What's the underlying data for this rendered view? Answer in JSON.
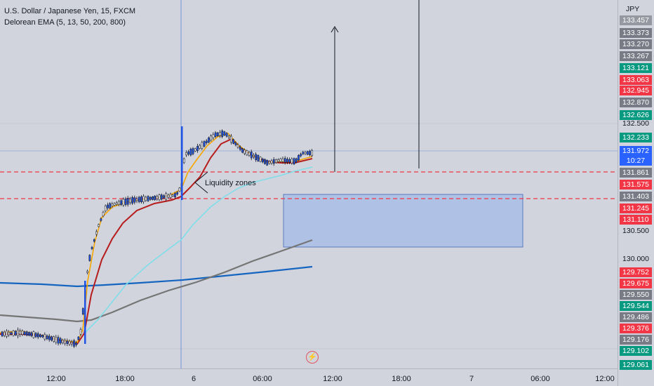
{
  "legend": {
    "symbol_line": "U.S. Dollar / Japanese Yen, 15, FXCM",
    "indicator_line": "Delorean EMA (5, 13, 50, 200, 800)"
  },
  "annotation": {
    "text": "Liquidity zones"
  },
  "price_axis": {
    "currency": "JPY",
    "labels": [
      {
        "text": "133.457",
        "kind": "tag",
        "color": "#9598a1"
      },
      {
        "text": "133.373",
        "kind": "tag",
        "color": "#787b86"
      },
      {
        "text": "133.270",
        "kind": "tag",
        "color": "#787b86"
      },
      {
        "text": "133.267",
        "kind": "tag",
        "color": "#787b86"
      },
      {
        "text": "133.121",
        "kind": "tag",
        "color": "#089981"
      },
      {
        "text": "133.063",
        "kind": "tag",
        "color": "#f23645"
      },
      {
        "text": "132.945",
        "kind": "tag",
        "color": "#f23645"
      },
      {
        "text": "132.870",
        "kind": "tag",
        "color": "#787b86"
      },
      {
        "text": "132.626",
        "kind": "tag",
        "color": "#089981"
      },
      {
        "text": "132.500",
        "kind": "plain",
        "color": ""
      },
      {
        "text": "132.233",
        "kind": "tag",
        "color": "#089981"
      },
      {
        "text": "131.972",
        "kind": "tag",
        "color": "#2962ff"
      },
      {
        "text": "10:27",
        "kind": "tag",
        "color": "#2962ff"
      },
      {
        "text": "131.861",
        "kind": "tag",
        "color": "#787b86"
      },
      {
        "text": "131.575",
        "kind": "tag",
        "color": "#f23645"
      },
      {
        "text": "131.403",
        "kind": "tag",
        "color": "#787b86"
      },
      {
        "text": "131.245",
        "kind": "tag",
        "color": "#f23645"
      },
      {
        "text": "131.110",
        "kind": "tag",
        "color": "#f23645"
      },
      {
        "text": "130.500",
        "kind": "plain",
        "color": ""
      },
      {
        "text": "130.000",
        "kind": "plain",
        "color": ""
      },
      {
        "text": "129.752",
        "kind": "tag",
        "color": "#f23645"
      },
      {
        "text": "129.675",
        "kind": "tag",
        "color": "#f23645"
      },
      {
        "text": "129.550",
        "kind": "tag",
        "color": "#787b86"
      },
      {
        "text": "129.544",
        "kind": "tag",
        "color": "#089981"
      },
      {
        "text": "129.486",
        "kind": "tag",
        "color": "#787b86"
      },
      {
        "text": "129.376",
        "kind": "tag",
        "color": "#f23645"
      },
      {
        "text": "129.176",
        "kind": "tag",
        "color": "#787b86"
      },
      {
        "text": "129.102",
        "kind": "tag",
        "color": "#089981"
      },
      {
        "text": "129.061",
        "kind": "tag",
        "color": "#089981"
      }
    ]
  },
  "time_axis": {
    "labels": [
      "12:00",
      "18:00",
      "6",
      "06:00",
      "12:00",
      "18:00",
      "7",
      "06:00",
      "12:00"
    ]
  },
  "icons": {
    "flash": "lightning-bolt-icon",
    "arrow": "up-arrow"
  },
  "colors": {
    "background": "#d1d4dc",
    "zone_box": "#a9bde6",
    "dashed_lines": "#f23645",
    "ema_fast": "#f7a600",
    "ema_mid": "#b71c1c",
    "ema_50": "#80deea",
    "ema_200": "#757575",
    "ema_800": "#1565c0"
  }
}
